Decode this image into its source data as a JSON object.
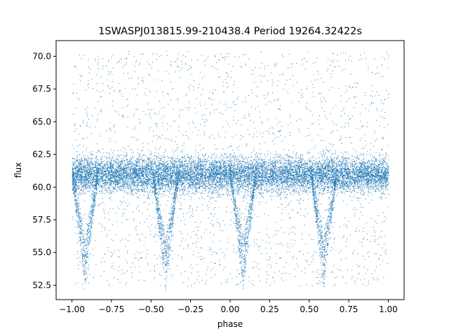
{
  "chart_data": {
    "type": "scatter",
    "title": "1SWASPJ013815.99-210438.4 Period 19264.32422s",
    "xlabel": "phase",
    "ylabel": "flux",
    "xlim": [
      -1.1,
      1.1
    ],
    "ylim": [
      51.4,
      71.2
    ],
    "x_ticks": [
      -1.0,
      -0.75,
      -0.5,
      -0.25,
      0.0,
      0.25,
      0.5,
      0.75,
      1.0
    ],
    "x_tick_labels": [
      "−1.00",
      "−0.75",
      "−0.50",
      "−0.25",
      "0.00",
      "0.25",
      "0.50",
      "0.75",
      "1.00"
    ],
    "y_ticks": [
      52.5,
      55.0,
      57.5,
      60.0,
      62.5,
      65.0,
      67.5,
      70.0
    ],
    "y_tick_labels": [
      "52.5",
      "55.0",
      "57.5",
      "60.0",
      "62.5",
      "65.0",
      "67.5",
      "70.0"
    ],
    "grid": false,
    "marker_color": "#1f77b4",
    "series": [
      {
        "description_points": [
          {
            "phase": -1.0,
            "flux_center": 61.0,
            "spread_low": 58.0,
            "spread_high": 64.5
          },
          {
            "phase": 0.0,
            "flux_center": 61.0,
            "spread_low": 58.0,
            "spread_high": 64.5
          },
          {
            "phase": 1.0,
            "flux_center": 61.0,
            "spread_low": 58.0,
            "spread_high": 64.5
          }
        ],
        "eclipse_phases": [
          -0.92,
          -0.41,
          0.08,
          0.59
        ],
        "eclipse_min_flux": 52.3
      }
    ]
  }
}
